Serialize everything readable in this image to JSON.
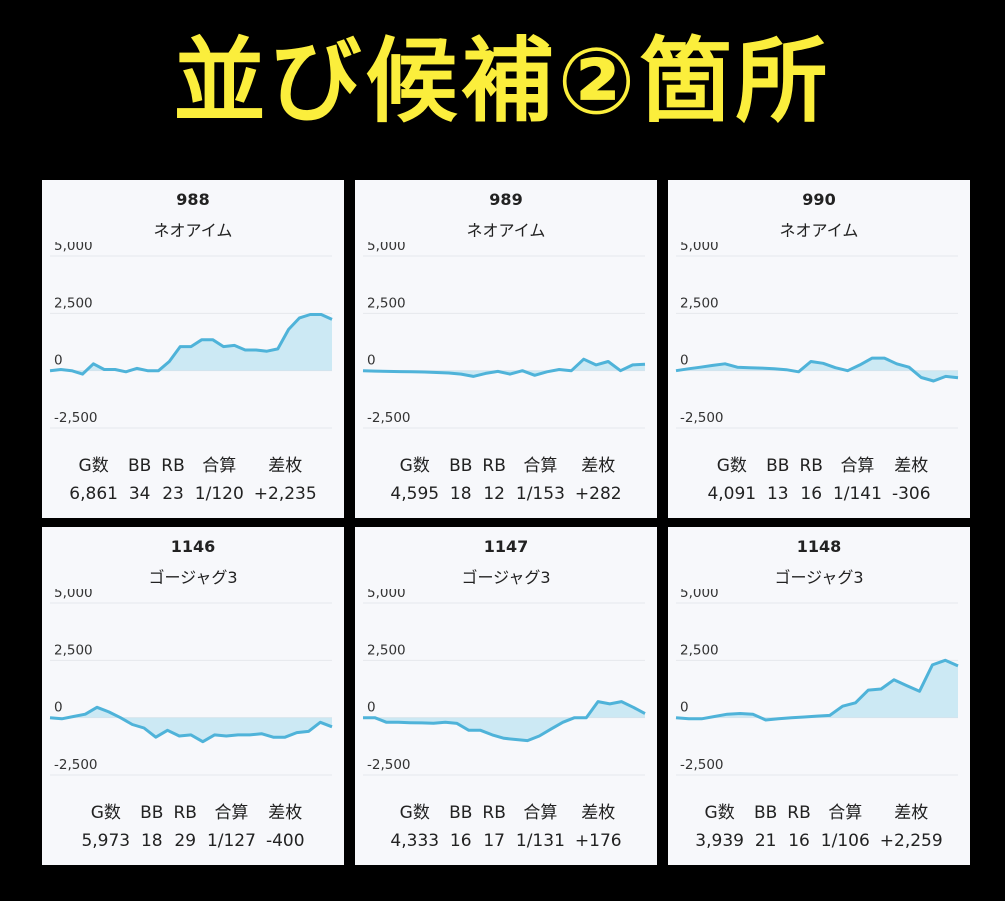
{
  "title": "並び候補②箇所",
  "colors": {
    "background": "#000000",
    "title": "#fbee3c",
    "card": "#f7f8fb",
    "line": "#4fb3d9",
    "fill": "#a9dcef"
  },
  "stat_headers": [
    "G数",
    "BB",
    "RB",
    "合算",
    "差枚"
  ],
  "chart_data": [
    {
      "type": "area",
      "number": "988",
      "model": "ネオアイム",
      "ylim": [
        -2500,
        5000
      ],
      "yticks": [
        "5,000",
        "2,500",
        "0",
        "-2,500"
      ],
      "values": [
        0,
        50,
        0,
        -150,
        300,
        50,
        50,
        -50,
        100,
        0,
        0,
        400,
        1050,
        1050,
        1350,
        1350,
        1050,
        1100,
        900,
        900,
        850,
        950,
        1800,
        2300,
        2450,
        2450,
        2235
      ],
      "stats": {
        "g": "6,861",
        "bb": "34",
        "rb": "23",
        "gousan": "1/120",
        "samai": "+2,235"
      }
    },
    {
      "type": "area",
      "number": "989",
      "model": "ネオアイム",
      "ylim": [
        -2500,
        5000
      ],
      "yticks": [
        "5,000",
        "2,500",
        "0",
        "-2,500"
      ],
      "values": [
        0,
        -20,
        -30,
        -40,
        -50,
        -60,
        -80,
        -100,
        -150,
        -250,
        -120,
        -30,
        -150,
        0,
        -200,
        -50,
        50,
        0,
        500,
        250,
        400,
        0,
        250,
        282
      ],
      "stats": {
        "g": "4,595",
        "bb": "18",
        "rb": "12",
        "gousan": "1/153",
        "samai": "+282"
      }
    },
    {
      "type": "area",
      "number": "990",
      "model": "ネオアイム",
      "ylim": [
        -2500,
        5000
      ],
      "yticks": [
        "5,000",
        "2,500",
        "0",
        "-2,500"
      ],
      "values": [
        0,
        80,
        150,
        230,
        300,
        150,
        130,
        110,
        80,
        40,
        -50,
        400,
        320,
        130,
        0,
        250,
        550,
        550,
        300,
        150,
        -300,
        -450,
        -250,
        -306
      ],
      "stats": {
        "g": "4,091",
        "bb": "13",
        "rb": "16",
        "gousan": "1/141",
        "samai": "-306"
      }
    },
    {
      "type": "area",
      "number": "1146",
      "model": "ゴージャグ3",
      "ylim": [
        -2500,
        5000
      ],
      "yticks": [
        "5,000",
        "2,500",
        "0",
        "-2,500"
      ],
      "values": [
        0,
        -50,
        50,
        150,
        450,
        250,
        0,
        -300,
        -450,
        -850,
        -550,
        -800,
        -750,
        -1050,
        -750,
        -800,
        -750,
        -750,
        -700,
        -850,
        -850,
        -650,
        -600,
        -200,
        -400
      ],
      "stats": {
        "g": "5,973",
        "bb": "18",
        "rb": "29",
        "gousan": "1/127",
        "samai": "-400"
      }
    },
    {
      "type": "area",
      "number": "1147",
      "model": "ゴージャグ3",
      "ylim": [
        -2500,
        5000
      ],
      "yticks": [
        "5,000",
        "2,500",
        "0",
        "-2,500"
      ],
      "values": [
        0,
        0,
        -200,
        -200,
        -220,
        -230,
        -240,
        -200,
        -250,
        -550,
        -550,
        -750,
        -900,
        -950,
        -1000,
        -800,
        -500,
        -200,
        0,
        0,
        700,
        600,
        700,
        450,
        176
      ],
      "stats": {
        "g": "4,333",
        "bb": "16",
        "rb": "17",
        "gousan": "1/131",
        "samai": "+176"
      }
    },
    {
      "type": "area",
      "number": "1148",
      "model": "ゴージャグ3",
      "ylim": [
        -2500,
        5000
      ],
      "yticks": [
        "5,000",
        "2,500",
        "0",
        "-2,500"
      ],
      "values": [
        0,
        -50,
        -50,
        50,
        150,
        180,
        150,
        -100,
        -50,
        0,
        30,
        70,
        100,
        500,
        650,
        1200,
        1250,
        1650,
        1400,
        1150,
        2300,
        2500,
        2259
      ],
      "stats": {
        "g": "3,939",
        "bb": "21",
        "rb": "16",
        "gousan": "1/106",
        "samai": "+2,259"
      }
    }
  ]
}
